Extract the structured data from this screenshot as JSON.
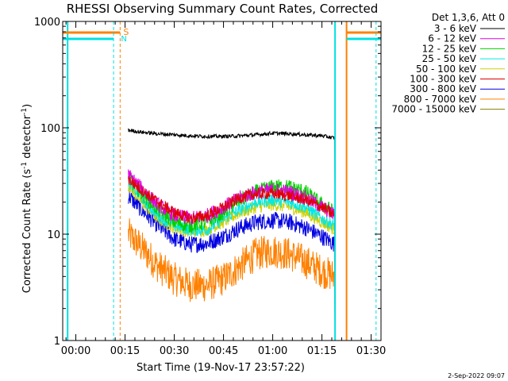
{
  "chart_data": {
    "type": "line",
    "title": "RHESSI Observing Summary Count Rates, Corrected",
    "xlabel": "Start Time (19-Nov-17 23:57:22)",
    "ylabel_main": "Corrected Count Rate (s",
    "ylabel_sup1": "-1",
    "ylabel_mid": " detector",
    "ylabel_sup2": "-1",
    "ylabel_end": ")",
    "yscale": "log",
    "ylim": [
      1,
      1000
    ],
    "xlim_minutes": [
      -4,
      93
    ],
    "y_tick_labels": [
      "1000",
      "100",
      "10",
      "1"
    ],
    "y_tick_values": [
      1000,
      100,
      10,
      1
    ],
    "x_tick_labels": [
      "00:00",
      "00:15",
      "00:30",
      "00:45",
      "01:00",
      "01:15",
      "01:30"
    ],
    "x_tick_minutes": [
      0,
      15,
      30,
      45,
      60,
      75,
      90
    ],
    "legend_title": "Det 1,3,6, Att 0",
    "legend_position": "top-right, outside plot",
    "footer_date": "2-Sep-2022 09:07",
    "flags": [
      {
        "label": "S",
        "color": "#ff8000"
      },
      {
        "label": "N",
        "color": "#00e0e0"
      }
    ],
    "series": [
      {
        "name": "3 - 6 keV",
        "color": "#000000",
        "points": [
          [
            16,
            95
          ],
          [
            20,
            91
          ],
          [
            25,
            88
          ],
          [
            30,
            86
          ],
          [
            35,
            84
          ],
          [
            40,
            83
          ],
          [
            45,
            83
          ],
          [
            50,
            84
          ],
          [
            55,
            86
          ],
          [
            60,
            89
          ],
          [
            65,
            88
          ],
          [
            70,
            86
          ],
          [
            75,
            84
          ],
          [
            79,
            80
          ]
        ]
      },
      {
        "name": "6 - 12 keV",
        "color": "#e000e0",
        "points": [
          [
            16,
            36
          ],
          [
            20,
            27
          ],
          [
            25,
            19
          ],
          [
            30,
            15
          ],
          [
            35,
            14
          ],
          [
            40,
            15
          ],
          [
            45,
            18
          ],
          [
            50,
            22
          ],
          [
            55,
            25
          ],
          [
            60,
            26
          ],
          [
            65,
            25
          ],
          [
            70,
            22
          ],
          [
            75,
            18
          ],
          [
            79,
            15
          ]
        ]
      },
      {
        "name": "12 - 25 keV",
        "color": "#00d000",
        "points": [
          [
            16,
            34
          ],
          [
            20,
            24
          ],
          [
            25,
            17
          ],
          [
            30,
            13
          ],
          [
            35,
            12
          ],
          [
            40,
            13
          ],
          [
            45,
            16
          ],
          [
            50,
            21
          ],
          [
            55,
            25
          ],
          [
            60,
            28
          ],
          [
            65,
            28
          ],
          [
            70,
            25
          ],
          [
            75,
            19
          ],
          [
            79,
            16
          ]
        ]
      },
      {
        "name": "25 - 50 keV",
        "color": "#00e8e8",
        "points": [
          [
            16,
            31
          ],
          [
            20,
            22
          ],
          [
            25,
            15
          ],
          [
            30,
            12
          ],
          [
            35,
            11
          ],
          [
            40,
            11
          ],
          [
            45,
            14
          ],
          [
            50,
            17
          ],
          [
            55,
            20
          ],
          [
            60,
            21
          ],
          [
            65,
            20
          ],
          [
            70,
            18
          ],
          [
            75,
            14
          ],
          [
            79,
            12
          ]
        ]
      },
      {
        "name": "50 - 100 keV",
        "color": "#d0d000",
        "points": [
          [
            16,
            29
          ],
          [
            20,
            20
          ],
          [
            25,
            14
          ],
          [
            30,
            11.5
          ],
          [
            35,
            10.5
          ],
          [
            40,
            11
          ],
          [
            45,
            13
          ],
          [
            50,
            16
          ],
          [
            55,
            18
          ],
          [
            60,
            19
          ],
          [
            65,
            18
          ],
          [
            70,
            16
          ],
          [
            75,
            13
          ],
          [
            79,
            11
          ]
        ]
      },
      {
        "name": "100 - 300 keV",
        "color": "#e00000",
        "points": [
          [
            16,
            33
          ],
          [
            20,
            26
          ],
          [
            25,
            20
          ],
          [
            30,
            16
          ],
          [
            35,
            14
          ],
          [
            40,
            15
          ],
          [
            45,
            18
          ],
          [
            50,
            22
          ],
          [
            55,
            24
          ],
          [
            60,
            24
          ],
          [
            65,
            23
          ],
          [
            70,
            21
          ],
          [
            75,
            18
          ],
          [
            79,
            15
          ]
        ]
      },
      {
        "name": "300 - 800 keV",
        "color": "#0000e0",
        "points": [
          [
            16,
            23
          ],
          [
            20,
            17
          ],
          [
            25,
            12
          ],
          [
            30,
            9
          ],
          [
            35,
            8
          ],
          [
            40,
            8.2
          ],
          [
            45,
            9.5
          ],
          [
            50,
            11.5
          ],
          [
            55,
            13
          ],
          [
            60,
            13.5
          ],
          [
            65,
            13
          ],
          [
            70,
            11.5
          ],
          [
            75,
            9.5
          ],
          [
            79,
            8
          ]
        ]
      },
      {
        "name": "800 - 7000 keV",
        "color": "#ff8000",
        "points": [
          [
            16,
            10
          ],
          [
            20,
            7.5
          ],
          [
            25,
            5
          ],
          [
            30,
            3.8
          ],
          [
            35,
            3.3
          ],
          [
            40,
            3.3
          ],
          [
            45,
            3.8
          ],
          [
            50,
            5
          ],
          [
            55,
            6.5
          ],
          [
            60,
            7
          ],
          [
            65,
            6.5
          ],
          [
            70,
            5.5
          ],
          [
            75,
            4.5
          ],
          [
            79,
            4
          ]
        ]
      },
      {
        "name": "7000 - 15000 keV",
        "color": "#808000",
        "points": []
      }
    ]
  }
}
